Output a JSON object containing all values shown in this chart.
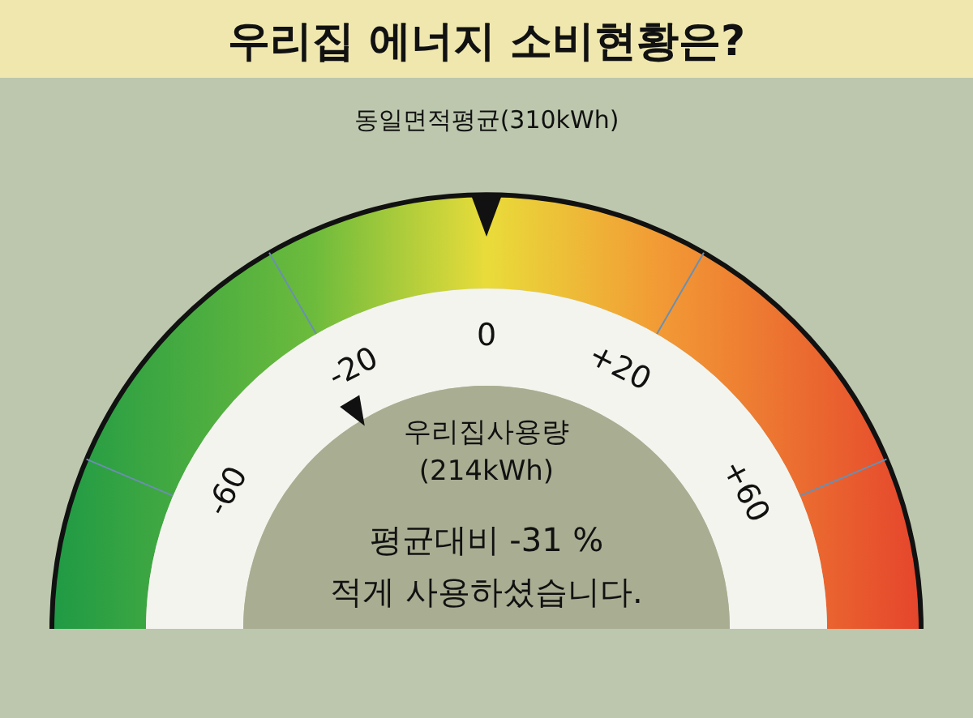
{
  "chart_data": {
    "type": "other",
    "title": "우리집 에너지 소비현황은?",
    "categories": [
      "동일면적평균",
      "우리집사용량"
    ],
    "values": [
      310,
      214
    ],
    "value_labels": [
      "(310kWh)",
      "(214kWh)"
    ],
    "annotations": [
      "-60",
      "-20",
      "0",
      "+20",
      "+60",
      "평균대비 -31 %",
      "적게 사용하셨습니다."
    ]
  }
}
